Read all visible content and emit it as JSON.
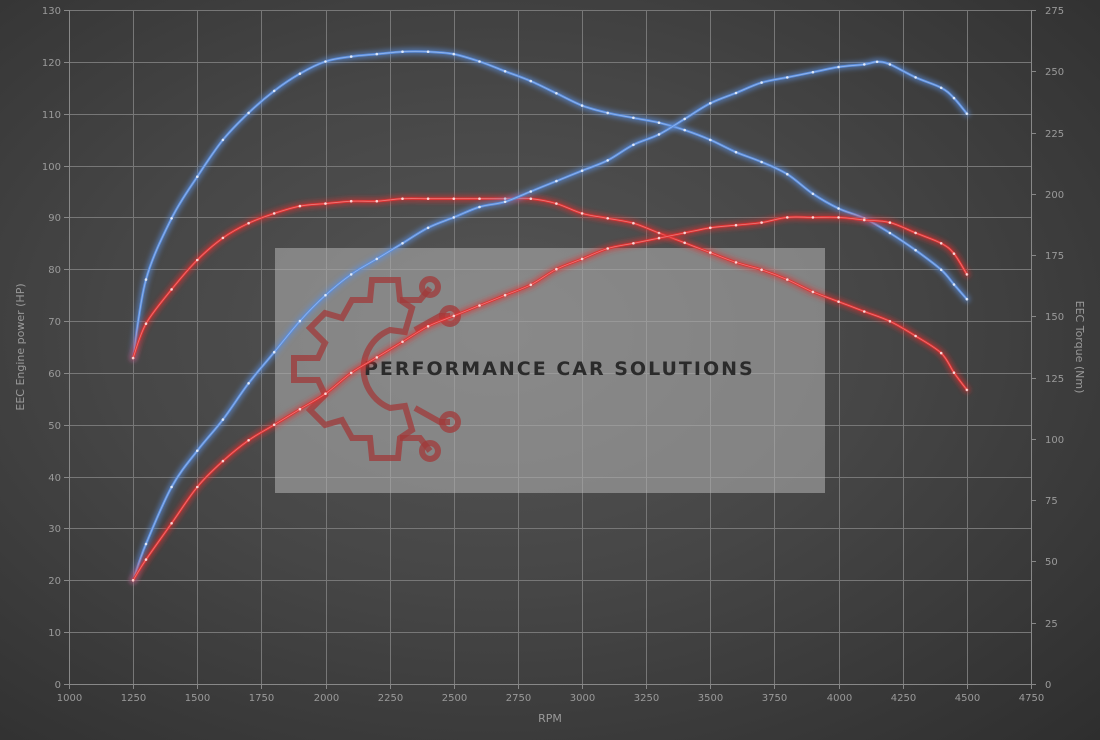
{
  "chart_data": {
    "type": "line",
    "xlabel": "RPM",
    "ylabel_left": "EEC Engine power (HP)",
    "ylabel_right": "EEC Torque (Nm)",
    "xlim": [
      1000,
      4750
    ],
    "xticks": [
      1000,
      1250,
      1500,
      1750,
      2000,
      2250,
      2500,
      2750,
      3000,
      3250,
      3500,
      3750,
      4000,
      4250,
      4500,
      4750
    ],
    "ylim_left": [
      0,
      130
    ],
    "yticks_left": [
      0,
      10,
      20,
      30,
      40,
      50,
      60,
      70,
      80,
      90,
      100,
      110,
      120,
      130
    ],
    "ylim_right": [
      0,
      275
    ],
    "yticks_right": [
      0,
      25,
      50,
      75,
      100,
      125,
      150,
      175,
      200,
      225,
      250,
      275
    ],
    "grid": true,
    "series": [
      {
        "key": "torque_tuned",
        "axis": "right",
        "color": "#5b8fe0",
        "x": [
          1250,
          1300,
          1400,
          1500,
          1600,
          1700,
          1800,
          1900,
          2000,
          2100,
          2200,
          2300,
          2400,
          2500,
          2600,
          2700,
          2800,
          2900,
          3000,
          3100,
          3200,
          3300,
          3400,
          3500,
          3600,
          3700,
          3800,
          3900,
          4000,
          4100,
          4200,
          4300,
          4400,
          4450,
          4500
        ],
        "values": [
          133,
          165,
          190,
          207,
          222,
          233,
          242,
          249,
          254,
          256,
          257,
          258,
          258,
          257,
          254,
          250,
          246,
          241,
          236,
          233,
          231,
          229,
          226,
          222,
          217,
          213,
          208,
          200,
          194,
          190,
          184,
          177,
          169,
          163,
          157
        ]
      },
      {
        "key": "torque_stock",
        "axis": "right",
        "color": "#e03232",
        "x": [
          1250,
          1300,
          1400,
          1500,
          1600,
          1700,
          1800,
          1900,
          2000,
          2100,
          2200,
          2300,
          2400,
          2500,
          2600,
          2700,
          2800,
          2900,
          3000,
          3100,
          3200,
          3300,
          3400,
          3500,
          3600,
          3700,
          3800,
          3900,
          4000,
          4100,
          4200,
          4300,
          4400,
          4450,
          4500
        ],
        "values": [
          133,
          147,
          161,
          173,
          182,
          188,
          192,
          195,
          196,
          197,
          197,
          198,
          198,
          198,
          198,
          198,
          198,
          196,
          192,
          190,
          188,
          184,
          180,
          176,
          172,
          169,
          165,
          160,
          156,
          152,
          148,
          142,
          135,
          127,
          120
        ]
      },
      {
        "key": "power_tuned",
        "axis": "left",
        "color": "#5b8fe0",
        "x": [
          1250,
          1300,
          1400,
          1500,
          1600,
          1700,
          1800,
          1900,
          2000,
          2100,
          2200,
          2300,
          2400,
          2500,
          2600,
          2700,
          2800,
          2900,
          3000,
          3100,
          3200,
          3300,
          3400,
          3500,
          3600,
          3700,
          3800,
          3900,
          4000,
          4100,
          4150,
          4200,
          4300,
          4400,
          4450,
          4500
        ],
        "values": [
          20,
          27,
          38,
          45,
          51,
          58,
          64,
          70,
          75,
          79,
          82,
          85,
          88,
          90,
          92,
          93,
          95,
          97,
          99,
          101,
          104,
          106,
          109,
          112,
          114,
          116,
          117,
          118,
          119,
          119.5,
          120,
          119.5,
          117,
          115,
          113,
          110
        ]
      },
      {
        "key": "power_stock",
        "axis": "left",
        "color": "#e03232",
        "x": [
          1250,
          1300,
          1400,
          1500,
          1600,
          1700,
          1800,
          1900,
          2000,
          2100,
          2200,
          2300,
          2400,
          2500,
          2600,
          2700,
          2800,
          2900,
          3000,
          3100,
          3200,
          3300,
          3400,
          3500,
          3600,
          3700,
          3800,
          3900,
          4000,
          4100,
          4200,
          4300,
          4400,
          4450,
          4500
        ],
        "values": [
          20,
          24,
          31,
          38,
          43,
          47,
          50,
          53,
          56,
          60,
          63,
          66,
          69,
          71,
          73,
          75,
          77,
          80,
          82,
          84,
          85,
          86,
          87,
          88,
          88.5,
          89,
          90,
          90,
          90,
          89.5,
          89,
          87,
          85,
          83,
          79
        ]
      }
    ]
  },
  "watermark": {
    "text": "PERFORMANCE CAR SOLUTIONS",
    "logo_icon": "gear-circuit-icon"
  }
}
